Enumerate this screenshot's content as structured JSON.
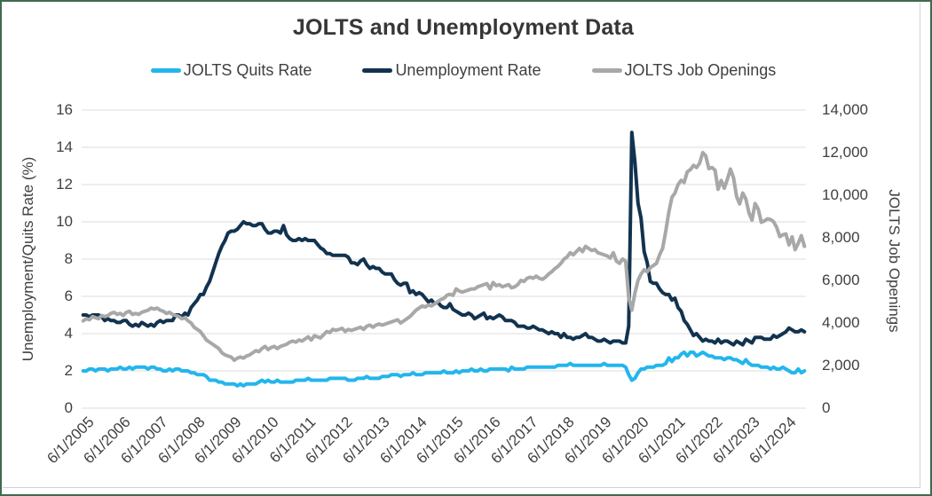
{
  "frame": {
    "background": "#ffffff",
    "border_color": "#3e6b4f",
    "card_edge_color": "#d2d2d2"
  },
  "chart_data": {
    "type": "line",
    "title": "JOLTS and Unemployment Data",
    "legend_position": "top",
    "grid": true,
    "gridline_color": "#e3e3e3",
    "x_start": "2005-06",
    "x_frequency": "monthly",
    "x_tick_every_months": 12,
    "x_tick_labels": [
      "6/1/2005",
      "6/1/2006",
      "6/1/2007",
      "6/1/2008",
      "6/1/2009",
      "6/1/2010",
      "6/1/2011",
      "6/1/2012",
      "6/1/2013",
      "6/1/2014",
      "6/1/2015",
      "6/1/2016",
      "6/1/2017",
      "6/1/2018",
      "6/1/2019",
      "6/1/2020",
      "6/1/2021",
      "6/1/2022",
      "6/1/2023",
      "6/1/2024"
    ],
    "left_axis": {
      "label": "Unemployment/Quits Rate (%)",
      "min": 0,
      "max": 16,
      "step": 2
    },
    "right_axis": {
      "label": "JOLTS Job Openings",
      "min": 0,
      "max": 14000,
      "step": 2000
    },
    "series": [
      {
        "name": "JOLTS Quits Rate",
        "color": "#23b6ec",
        "axis": "left",
        "values_by_year": [
          [
            2.0,
            2.0,
            2.1,
            2.1,
            2.0,
            2.1,
            2.1
          ],
          [
            2.1,
            2.0,
            2.1,
            2.1,
            2.1,
            2.2,
            2.1,
            2.1,
            2.2,
            2.1,
            2.2,
            2.2
          ],
          [
            2.2,
            2.2,
            2.1,
            2.2,
            2.2,
            2.1,
            2.1,
            2.0,
            2.0,
            2.1,
            2.0,
            2.1
          ],
          [
            2.1,
            2.0,
            2.0,
            2.0,
            1.9,
            1.9,
            1.8,
            1.8,
            1.8,
            1.7,
            1.5,
            1.5
          ],
          [
            1.5,
            1.4,
            1.4,
            1.3,
            1.3,
            1.3,
            1.3,
            1.2,
            1.3,
            1.2,
            1.3,
            1.3
          ],
          [
            1.3,
            1.3,
            1.4,
            1.5,
            1.4,
            1.5,
            1.4,
            1.4,
            1.5,
            1.4,
            1.4,
            1.4
          ],
          [
            1.4,
            1.4,
            1.5,
            1.5,
            1.5,
            1.5,
            1.6,
            1.5,
            1.5,
            1.5,
            1.5,
            1.5
          ],
          [
            1.5,
            1.6,
            1.6,
            1.6,
            1.6,
            1.6,
            1.6,
            1.5,
            1.5,
            1.5,
            1.6,
            1.6
          ],
          [
            1.6,
            1.7,
            1.6,
            1.6,
            1.6,
            1.6,
            1.7,
            1.7,
            1.7,
            1.8,
            1.8,
            1.8
          ],
          [
            1.7,
            1.8,
            1.8,
            1.8,
            1.9,
            1.8,
            1.8,
            1.8,
            1.9,
            1.9,
            1.9,
            1.9
          ],
          [
            1.9,
            1.9,
            2.0,
            1.9,
            1.9,
            1.9,
            2.0,
            1.9,
            2.0,
            2.0,
            2.0,
            2.1
          ],
          [
            2.0,
            2.0,
            2.1,
            2.0,
            2.0,
            2.1,
            2.1,
            2.1,
            2.1,
            2.1,
            2.1,
            2.0
          ],
          [
            2.2,
            2.1,
            2.1,
            2.1,
            2.1,
            2.2,
            2.2,
            2.2,
            2.2,
            2.2,
            2.2,
            2.2
          ],
          [
            2.2,
            2.2,
            2.2,
            2.3,
            2.3,
            2.3,
            2.3,
            2.4,
            2.3,
            2.3,
            2.3,
            2.3
          ],
          [
            2.3,
            2.3,
            2.3,
            2.3,
            2.3,
            2.3,
            2.4,
            2.3,
            2.3,
            2.3,
            2.3,
            2.3
          ],
          [
            2.3,
            2.2,
            1.8,
            1.5,
            1.6,
            1.9,
            2.1,
            2.1,
            2.2,
            2.2,
            2.2,
            2.3
          ],
          [
            2.3,
            2.3,
            2.4,
            2.7,
            2.5,
            2.7,
            2.7,
            2.9,
            3.0,
            2.8,
            3.0,
            3.0
          ],
          [
            2.8,
            2.9,
            3.0,
            2.9,
            2.8,
            2.8,
            2.7,
            2.7,
            2.7,
            2.6,
            2.7,
            2.7
          ],
          [
            2.6,
            2.6,
            2.5,
            2.4,
            2.6,
            2.4,
            2.3,
            2.3,
            2.3,
            2.2,
            2.2,
            2.2
          ],
          [
            2.1,
            2.2,
            2.1,
            2.1,
            2.2,
            2.1,
            2.0,
            1.9,
            1.9,
            2.1,
            1.9,
            2.0
          ]
        ]
      },
      {
        "name": "Unemployment Rate",
        "color": "#12334f",
        "axis": "left",
        "values_by_year": [
          [
            5.0,
            5.0,
            4.9,
            5.0,
            5.0,
            5.0,
            4.9
          ],
          [
            4.7,
            4.8,
            4.7,
            4.7,
            4.6,
            4.6,
            4.7,
            4.7,
            4.5,
            4.4,
            4.5,
            4.4
          ],
          [
            4.6,
            4.5,
            4.4,
            4.5,
            4.4,
            4.6,
            4.7,
            4.6,
            4.7,
            4.7,
            4.7,
            5.0
          ],
          [
            5.0,
            4.9,
            5.1,
            5.0,
            5.4,
            5.6,
            5.8,
            6.1,
            6.1,
            6.5,
            6.8,
            7.3
          ],
          [
            7.8,
            8.3,
            8.7,
            9.0,
            9.4,
            9.5,
            9.5,
            9.6,
            9.8,
            10.0,
            9.9,
            9.9
          ],
          [
            9.8,
            9.8,
            9.9,
            9.9,
            9.6,
            9.4,
            9.4,
            9.5,
            9.5,
            9.4,
            9.8,
            9.3
          ],
          [
            9.1,
            9.0,
            9.0,
            9.1,
            9.0,
            9.1,
            9.0,
            9.0,
            9.0,
            8.8,
            8.6,
            8.5
          ],
          [
            8.3,
            8.3,
            8.2,
            8.2,
            8.2,
            8.2,
            8.2,
            8.1,
            7.8,
            7.8,
            7.7,
            7.9
          ],
          [
            8.0,
            7.7,
            7.5,
            7.6,
            7.5,
            7.5,
            7.3,
            7.2,
            7.2,
            7.2,
            6.9,
            6.7
          ],
          [
            6.6,
            6.7,
            6.7,
            6.2,
            6.3,
            6.1,
            6.2,
            6.1,
            5.9,
            5.7,
            5.8,
            5.6
          ],
          [
            5.7,
            5.5,
            5.4,
            5.4,
            5.6,
            5.3,
            5.2,
            5.1,
            5.0,
            5.0,
            5.1,
            5.0
          ],
          [
            4.8,
            4.9,
            5.0,
            5.1,
            4.8,
            4.9,
            4.8,
            4.9,
            5.0,
            4.9,
            4.7,
            4.7
          ],
          [
            4.7,
            4.6,
            4.4,
            4.4,
            4.4,
            4.3,
            4.3,
            4.4,
            4.3,
            4.2,
            4.2,
            4.1
          ],
          [
            4.0,
            4.1,
            4.0,
            4.0,
            3.8,
            4.0,
            3.8,
            3.8,
            3.7,
            3.8,
            3.8,
            3.9
          ],
          [
            4.0,
            3.8,
            3.8,
            3.7,
            3.6,
            3.6,
            3.7,
            3.6,
            3.5,
            3.6,
            3.6,
            3.6
          ],
          [
            3.5,
            3.5,
            4.4,
            14.8,
            13.2,
            11.0,
            10.2,
            8.4,
            7.8,
            6.8,
            6.7,
            6.7
          ],
          [
            6.4,
            6.2,
            6.1,
            6.1,
            5.8,
            5.9,
            5.4,
            5.2,
            4.7,
            4.5,
            4.2,
            3.9
          ],
          [
            4.0,
            3.8,
            3.6,
            3.7,
            3.6,
            3.6,
            3.5,
            3.7,
            3.5,
            3.6,
            3.6,
            3.5
          ],
          [
            3.4,
            3.6,
            3.5,
            3.4,
            3.7,
            3.6,
            3.5,
            3.8,
            3.8,
            3.8,
            3.7,
            3.7
          ],
          [
            3.7,
            3.9,
            3.8,
            3.9,
            4.0,
            4.1,
            4.3,
            4.2,
            4.1,
            4.1,
            4.2,
            4.1
          ]
        ]
      },
      {
        "name": "JOLTS Job Openings",
        "color": "#a8a8a8",
        "axis": "right",
        "values_by_year": [
          [
            4100,
            4200,
            4150,
            4300,
            4250,
            4200,
            4350
          ],
          [
            4300,
            4350,
            4450,
            4500,
            4400,
            4450,
            4350,
            4500,
            4550,
            4400,
            4450,
            4400
          ],
          [
            4500,
            4550,
            4600,
            4700,
            4650,
            4700,
            4600,
            4550,
            4450,
            4500,
            4400,
            4350
          ],
          [
            4300,
            4200,
            4250,
            4100,
            4000,
            3800,
            3700,
            3600,
            3400,
            3200,
            3100,
            3000
          ],
          [
            2900,
            2800,
            2600,
            2500,
            2450,
            2400,
            2250,
            2350,
            2400,
            2350,
            2450,
            2500
          ],
          [
            2600,
            2700,
            2650,
            2800,
            2900,
            2750,
            2850,
            2900,
            2800,
            2900,
            2950,
            3000
          ],
          [
            3100,
            3150,
            3100,
            3200,
            3150,
            3250,
            3350,
            3200,
            3400,
            3350,
            3300,
            3450
          ],
          [
            3600,
            3550,
            3700,
            3650,
            3700,
            3750,
            3600,
            3700,
            3650,
            3700,
            3750,
            3800
          ],
          [
            3700,
            3850,
            3900,
            3800,
            3900,
            3950,
            3900,
            3950,
            4000,
            4050,
            4100,
            4150
          ],
          [
            4000,
            4100,
            4200,
            4300,
            4450,
            4600,
            4700,
            4800,
            4750,
            4850,
            4800,
            4900
          ],
          [
            5000,
            5100,
            5150,
            5300,
            5350,
            5300,
            5600,
            5500,
            5450,
            5500,
            5550,
            5600
          ],
          [
            5600,
            5700,
            5750,
            5800,
            5850,
            5600,
            5900,
            5750,
            5800,
            5700,
            5750,
            5800
          ],
          [
            5650,
            5700,
            5800,
            6000,
            5950,
            6100,
            6150,
            6100,
            6200,
            6100,
            6050,
            6150
          ],
          [
            6300,
            6400,
            6550,
            6650,
            6800,
            7000,
            7100,
            7300,
            7200,
            7350,
            7500,
            7350
          ],
          [
            7600,
            7500,
            7400,
            7450,
            7300,
            7250,
            7200,
            7150,
            7050,
            7300,
            6900,
            6800
          ],
          [
            7000,
            6900,
            5200,
            4600,
            5400,
            6000,
            6300,
            6500,
            6400,
            6600,
            6700,
            6800
          ],
          [
            7200,
            7500,
            8300,
            9200,
            9900,
            10100,
            10500,
            10700,
            10600,
            11100,
            11200,
            11400
          ],
          [
            11300,
            11500,
            12000,
            11850,
            11250,
            11300,
            11170,
            10280,
            10690,
            10330,
            10750,
            11230
          ],
          [
            10820,
            9930,
            9590,
            10100,
            9820,
            9170,
            8830,
            9610,
            9350,
            8730,
            8790,
            8890
          ],
          [
            8860,
            8760,
            8490,
            8060,
            8140,
            8180,
            7670,
            8040,
            7440,
            7740,
            8100,
            7600
          ]
        ]
      }
    ]
  }
}
